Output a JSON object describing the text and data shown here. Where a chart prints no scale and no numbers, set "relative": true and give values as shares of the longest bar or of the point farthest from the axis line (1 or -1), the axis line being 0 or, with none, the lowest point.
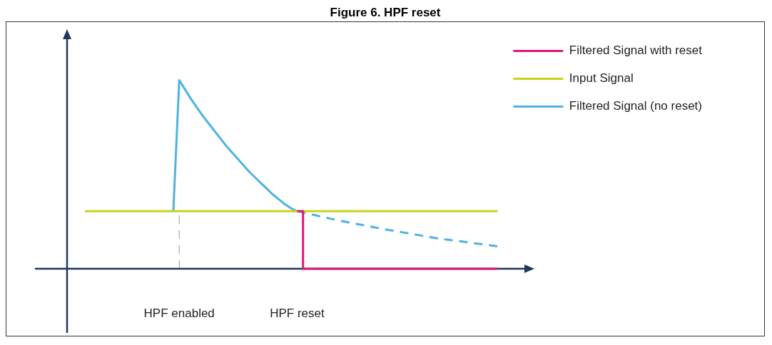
{
  "chart_data": {
    "type": "line",
    "title": "Figure 6. HPF reset",
    "relative": true,
    "categories": [
      null,
      null,
      null,
      null,
      null,
      null,
      null,
      null,
      null,
      null,
      null,
      null,
      null,
      null,
      null,
      null,
      "HPF enabled",
      null,
      null,
      null,
      null,
      null,
      null,
      null,
      null,
      null,
      null,
      null,
      null,
      null,
      null,
      null,
      null,
      null,
      null,
      null,
      "HPF reset",
      null,
      null,
      null,
      null,
      null,
      null,
      null,
      null,
      null,
      null,
      null,
      null,
      null,
      null,
      null,
      null,
      null,
      null,
      null,
      null,
      null,
      null,
      null,
      null,
      null,
      null,
      null,
      null,
      null,
      null,
      null,
      null,
      null,
      null
    ],
    "legend": "top right",
    "grid": false,
    "marker": "none",
    "series": [
      {
        "name": "Input Signal",
        "color": "#c8d419",
        "values": [
          0.305,
          0.305,
          0.305,
          0.305,
          0.305,
          0.305,
          0.305,
          0.305,
          0.305,
          0.305,
          0.305,
          0.305,
          0.305,
          0.305,
          0.305,
          0.305,
          0.305,
          0.305,
          0.305,
          0.305,
          0.305,
          0.305,
          0.305,
          0.305,
          0.305,
          0.305,
          0.305,
          0.305,
          0.305,
          0.305,
          0.305,
          0.305,
          0.305,
          0.305,
          0.305,
          0.305,
          0.305,
          0.305,
          0.305,
          0.305,
          0.305,
          0.305,
          0.305,
          0.305,
          0.305,
          0.305,
          0.305,
          0.305,
          0.305,
          0.305,
          0.305,
          0.305,
          0.305,
          0.305,
          0.305,
          0.305,
          0.305,
          0.305,
          0.305,
          0.305,
          0.305,
          0.305,
          0.305,
          0.305,
          0.305,
          0.305,
          0.305,
          0.305,
          0.305,
          0.305,
          0.305
        ]
      },
      {
        "name": "Filtered Signal with reset",
        "color": "#e0147f",
        "type": "step",
        "values": [
          null,
          null,
          null,
          null,
          null,
          null,
          null,
          null,
          null,
          null,
          null,
          null,
          null,
          null,
          null,
          null,
          null,
          null,
          null,
          null,
          null,
          null,
          null,
          null,
          null,
          null,
          null,
          null,
          null,
          null,
          null,
          null,
          null,
          null,
          null,
          null,
          0.305,
          0,
          0,
          0,
          0,
          0,
          0,
          0,
          0,
          0,
          0,
          0,
          0,
          0,
          0,
          0,
          0,
          0,
          0,
          0,
          0,
          0,
          0,
          0,
          0,
          0,
          0,
          0,
          0,
          0,
          0,
          0,
          0,
          0,
          0
        ]
      },
      {
        "name": "Filtered Signal (no reset)",
        "color": "#4eb3e0",
        "values": [
          null,
          null,
          null,
          null,
          null,
          null,
          null,
          null,
          null,
          null,
          null,
          null,
          null,
          null,
          null,
          0.305,
          1,
          0.95,
          0.9,
          0.855,
          0.81,
          0.77,
          0.73,
          0.69,
          0.65,
          0.615,
          0.58,
          0.545,
          0.51,
          0.48,
          0.45,
          0.42,
          0.39,
          0.365,
          0.34,
          0.32,
          0.305,
          null,
          null,
          null,
          null,
          null,
          null,
          null,
          null,
          null,
          null,
          null,
          null,
          null,
          null,
          null,
          null,
          null,
          null,
          null,
          null,
          null,
          null,
          null,
          null,
          null,
          null,
          null,
          null,
          null,
          null,
          null,
          null,
          null,
          null
        ]
      },
      {
        "color": "#4eb3e0",
        "line_style": "dashed",
        "values": [
          null,
          null,
          null,
          null,
          null,
          null,
          null,
          null,
          null,
          null,
          null,
          null,
          null,
          null,
          null,
          null,
          null,
          null,
          null,
          null,
          null,
          null,
          null,
          null,
          null,
          null,
          null,
          null,
          null,
          null,
          null,
          null,
          null,
          null,
          null,
          null,
          0.305,
          0.298,
          0.291,
          0.284,
          0.277,
          0.27,
          0.263,
          0.256,
          0.25,
          0.244,
          0.238,
          0.232,
          0.226,
          0.22,
          0.214,
          0.208,
          0.203,
          0.198,
          0.192,
          0.187,
          0.181,
          0.176,
          0.17,
          0.165,
          0.16,
          0.156,
          0.152,
          0.148,
          0.144,
          0.139,
          0.135,
          0.131,
          0.127,
          0.123,
          0.119
        ]
      }
    ],
    "ref_lines": [
      {
        "axis": "x",
        "value": "HPF enabled",
        "color": "#999999",
        "line_style": "dashed"
      }
    ]
  }
}
